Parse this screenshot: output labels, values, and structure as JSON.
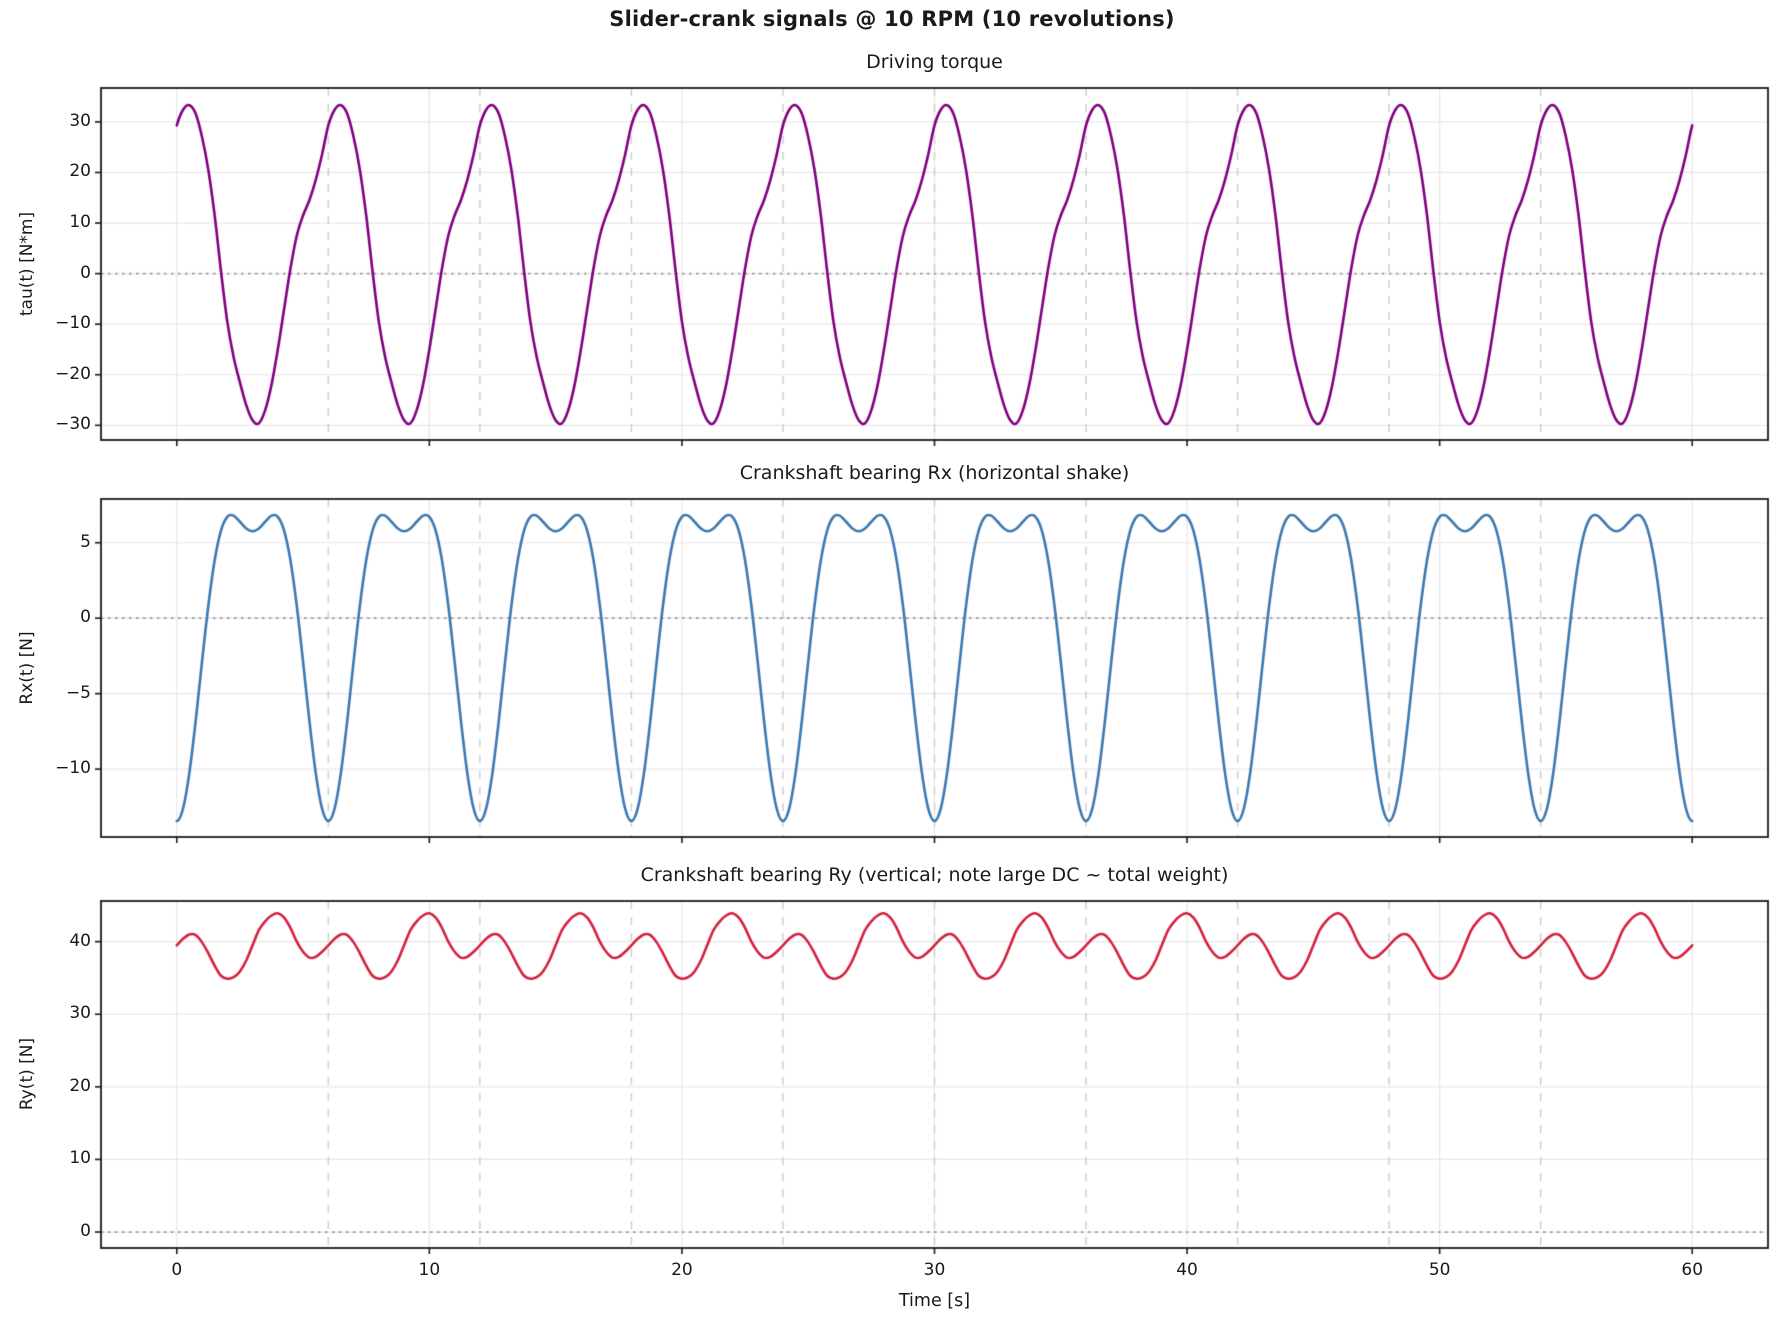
{
  "figure": {
    "suptitle": "Slider-crank signals @ 10 RPM (10 revolutions)",
    "background": "#ffffff",
    "text_color": "#1a1a1a",
    "spine_color": "#1a1a1a",
    "grid_color": "#e7e7e7",
    "cycle_line_color": "#cfcfcf",
    "zero_line_color": "#9a9a9a"
  },
  "chart_data": {
    "type": "line",
    "title": "Slider-crank signals @ 10 RPM (10 revolutions)",
    "xlabel": "Time [s]",
    "x_axis": {
      "label": "Time [s]",
      "ticks": [
        0,
        10,
        20,
        30,
        40,
        50,
        60
      ],
      "lim": [
        -3,
        63
      ]
    },
    "revolution_period_s": 6,
    "revolutions": 10,
    "time_range_s": [
      0,
      60
    ],
    "sample_dt_s": 0.25,
    "cycle_boundary_lines_s": [
      6,
      12,
      18,
      24,
      30,
      36,
      42,
      48,
      54
    ],
    "grid": true,
    "legend": "none",
    "sampling_note": "period_values are one 6 s revolution sampled every 0.25 s; the waveform repeats for 10 revolutions spanning 0-60 s",
    "subplots": [
      {
        "title": "Driving torque",
        "ylabel": "tau(t) [N*m]",
        "color": "#800080",
        "yticks": [
          -30,
          -20,
          -10,
          0,
          10,
          20,
          30
        ],
        "ylim": [
          -32.9,
          36.7
        ],
        "zero_line": true,
        "max_value": 33.3,
        "min_value": -29.7,
        "period_values": [
          29.3,
          32.4,
          33.3,
          31.6,
          27.0,
          20.5,
          11.5,
          0.5,
          -9.5,
          -16.5,
          -21.5,
          -26.0,
          -29.0,
          -29.6,
          -27.0,
          -22.0,
          -15.0,
          -7.0,
          1.0,
          7.5,
          11.5,
          14.5,
          18.5,
          23.5
        ]
      },
      {
        "title": "Crankshaft bearing Rx (horizontal shake)",
        "ylabel": "Rx(t) [N]",
        "color": "#3c79b0",
        "yticks": [
          -10,
          -5,
          0,
          5
        ],
        "ylim": [
          -14.5,
          7.9
        ],
        "zero_line": true,
        "max_value": 6.8,
        "min_value": -13.44,
        "period_values": [
          -13.44,
          -12.6,
          -10.23,
          -6.79,
          -2.88,
          0.84,
          3.84,
          5.81,
          6.72,
          6.8,
          6.39,
          5.95,
          5.76,
          5.95,
          6.39,
          6.8,
          6.72,
          5.81,
          3.84,
          0.84,
          -2.88,
          -6.79,
          -10.23,
          -12.6
        ]
      },
      {
        "title": "Crankshaft bearing Ry (vertical; note large DC ~ total weight)",
        "ylabel": "Ry(t) [N]",
        "color": "#d4203d",
        "yticks": [
          0,
          10,
          20,
          30,
          40
        ],
        "ylim": [
          -2.2,
          45.6
        ],
        "zero_line": true,
        "max_value": 43.9,
        "min_value": 34.9,
        "dc_level": 39.3,
        "period_values": [
          39.5,
          40.4,
          41.0,
          40.9,
          39.9,
          38.4,
          36.7,
          35.3,
          34.9,
          35.1,
          35.9,
          37.4,
          39.5,
          41.6,
          42.8,
          43.6,
          43.9,
          43.3,
          41.9,
          40.0,
          38.6,
          37.8,
          37.9,
          38.6
        ]
      }
    ]
  }
}
